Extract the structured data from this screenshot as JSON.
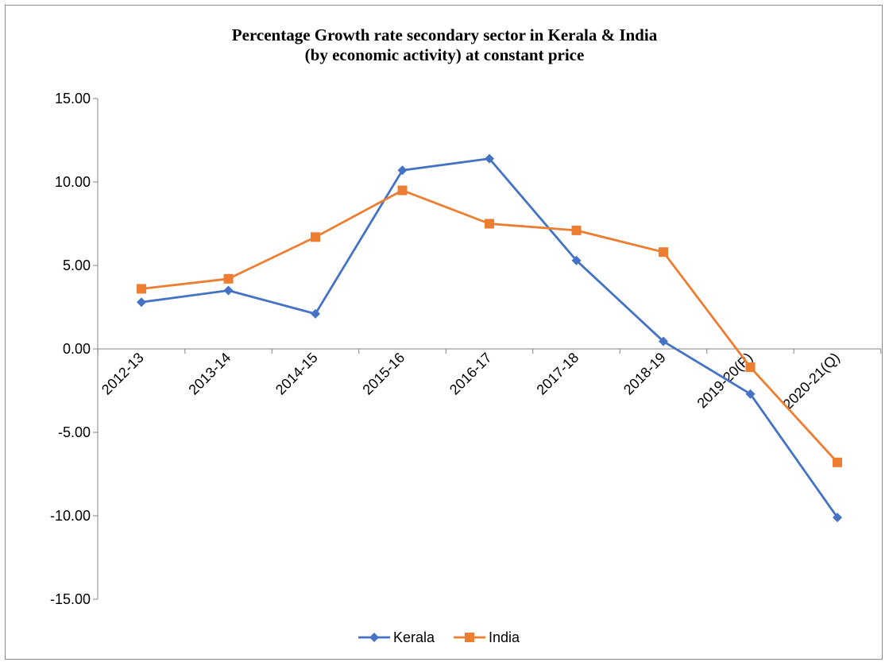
{
  "chart_data": {
    "type": "line",
    "title": "Percentage Growth rate secondary sector in Kerala & India",
    "subtitle": "(by economic activity) at constant price",
    "xlabel": "",
    "ylabel": "",
    "categories": [
      "2012-13",
      "2013-14",
      "2014-15",
      "2015-16",
      "2016-17",
      "2017-18",
      "2018-19",
      "2019-20(P)",
      "2020-21(Q)"
    ],
    "ylim": [
      -15,
      15
    ],
    "yticks": [
      "15.00",
      "10.00",
      "5.00",
      "0.00",
      "-5.00",
      "-10.00",
      "-15.00"
    ],
    "grid": false,
    "legend_position": "bottom",
    "series": [
      {
        "name": "Kerala",
        "color": "#4472C4",
        "marker": "diamond",
        "values": [
          2.8,
          3.5,
          2.1,
          10.7,
          11.4,
          5.3,
          0.45,
          -2.7,
          -10.1
        ]
      },
      {
        "name": "India",
        "color": "#ED7D31",
        "marker": "square",
        "values": [
          3.6,
          4.2,
          6.7,
          9.5,
          7.5,
          7.1,
          5.8,
          -1.1,
          -6.8
        ]
      }
    ]
  }
}
